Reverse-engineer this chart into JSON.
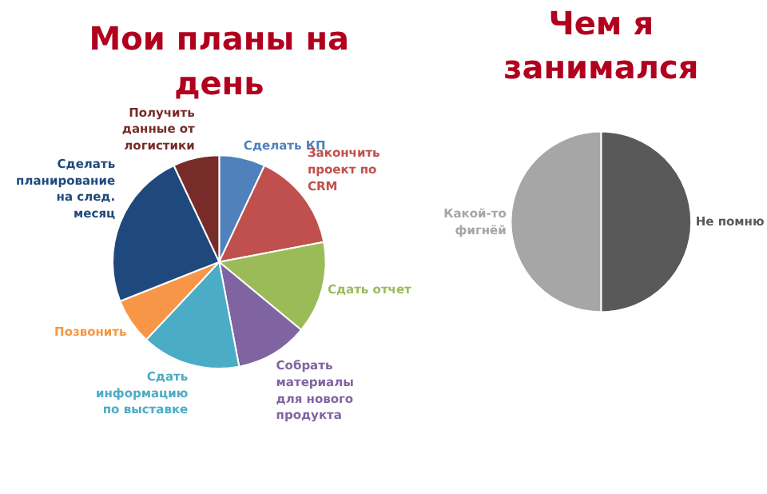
{
  "chart_data": [
    {
      "type": "pie",
      "title": "Мои планы на день",
      "categories": [
        "Сделать КП",
        "Закончить проект по CRM",
        "Сдать отчет",
        "Собрать материалы для нового продукта",
        "Сдать информацию по выставке",
        "Позвонить",
        "Сделать планирование на след. месяц",
        "Получить данные от логистики"
      ],
      "values": [
        7,
        15,
        14,
        11,
        15,
        7,
        24,
        7
      ],
      "colors": [
        "#4f81bd",
        "#c0504d",
        "#9bbb59",
        "#8064a2",
        "#4bacc6",
        "#f79646",
        "#1f497d",
        "#772c2a"
      ]
    },
    {
      "type": "pie",
      "title": "Чем я занимался",
      "categories": [
        "Не помню",
        "Какой-то фигнёй"
      ],
      "values": [
        50,
        50
      ],
      "colors": [
        "#595959",
        "#a6a6a6"
      ]
    }
  ]
}
